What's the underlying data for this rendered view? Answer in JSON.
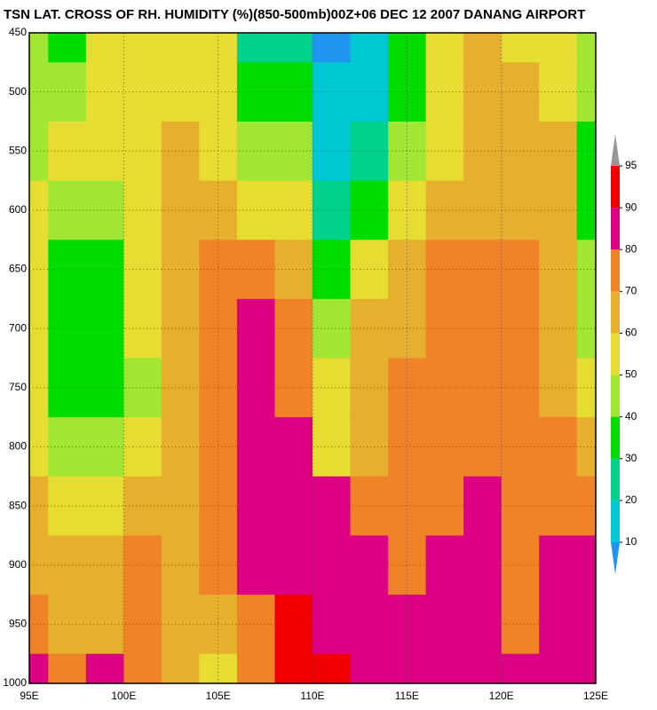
{
  "chart_data": {
    "type": "contour",
    "title": "TSN LAT. CROSS OF RH. HUMIDITY (%)(850-500mb)00Z+06 DEC 12 2007 DANANG AIRPORT",
    "x": [
      95,
      97,
      99,
      101,
      103,
      105,
      107,
      109,
      111,
      113,
      115,
      117,
      119,
      121,
      123,
      125
    ],
    "y": [
      450,
      500,
      550,
      600,
      650,
      700,
      750,
      800,
      850,
      900,
      950,
      1000
    ],
    "z": [
      [
        45,
        38,
        50,
        55,
        58,
        55,
        25,
        25,
        8,
        18,
        35,
        55,
        62,
        58,
        55,
        40
      ],
      [
        45,
        48,
        55,
        55,
        55,
        52,
        35,
        38,
        15,
        18,
        35,
        52,
        62,
        62,
        58,
        42
      ],
      [
        48,
        52,
        55,
        58,
        62,
        55,
        40,
        45,
        18,
        25,
        42,
        55,
        65,
        65,
        60,
        35
      ],
      [
        50,
        45,
        45,
        55,
        62,
        62,
        58,
        55,
        25,
        30,
        55,
        65,
        68,
        68,
        60,
        35
      ],
      [
        52,
        35,
        35,
        52,
        65,
        70,
        72,
        65,
        35,
        52,
        68,
        70,
        72,
        70,
        62,
        40
      ],
      [
        52,
        35,
        35,
        50,
        65,
        75,
        82,
        70,
        40,
        62,
        68,
        70,
        72,
        70,
        62,
        45
      ],
      [
        50,
        38,
        38,
        48,
        62,
        75,
        85,
        72,
        52,
        65,
        70,
        72,
        72,
        72,
        68,
        55
      ],
      [
        55,
        45,
        45,
        55,
        65,
        75,
        85,
        82,
        58,
        68,
        72,
        72,
        75,
        78,
        72,
        62
      ],
      [
        62,
        58,
        55,
        65,
        68,
        72,
        85,
        85,
        80,
        75,
        75,
        72,
        82,
        75,
        72,
        72
      ],
      [
        65,
        62,
        65,
        72,
        65,
        72,
        82,
        85,
        85,
        80,
        78,
        82,
        85,
        75,
        80,
        82
      ],
      [
        72,
        65,
        68,
        72,
        65,
        68,
        72,
        92,
        85,
        85,
        80,
        82,
        85,
        78,
        82,
        85
      ],
      [
        82,
        70,
        82,
        72,
        68,
        58,
        70,
        92,
        92,
        85,
        85,
        85,
        85,
        80,
        85,
        85
      ]
    ],
    "xlim": [
      95,
      125
    ],
    "ylim": [
      1000,
      450
    ],
    "xticks": [
      {
        "value": 95,
        "label": "95E"
      },
      {
        "value": 100,
        "label": "100E"
      },
      {
        "value": 105,
        "label": "105E"
      },
      {
        "value": 110,
        "label": "110E"
      },
      {
        "value": 115,
        "label": "115E"
      },
      {
        "value": 120,
        "label": "120E"
      },
      {
        "value": 125,
        "label": "125E"
      }
    ],
    "yticks": [
      450,
      500,
      550,
      600,
      650,
      700,
      750,
      800,
      850,
      900,
      950,
      1000
    ],
    "grid": true,
    "levels": [
      10,
      20,
      30,
      40,
      50,
      60,
      70,
      80,
      90,
      95
    ],
    "colors": [
      "#1e96f0",
      "#00c8d2",
      "#00d28c",
      "#00dc00",
      "#a0e632",
      "#e6dc32",
      "#e6af2d",
      "#f08228",
      "#dc0082",
      "#f00000",
      "#969696"
    ]
  }
}
